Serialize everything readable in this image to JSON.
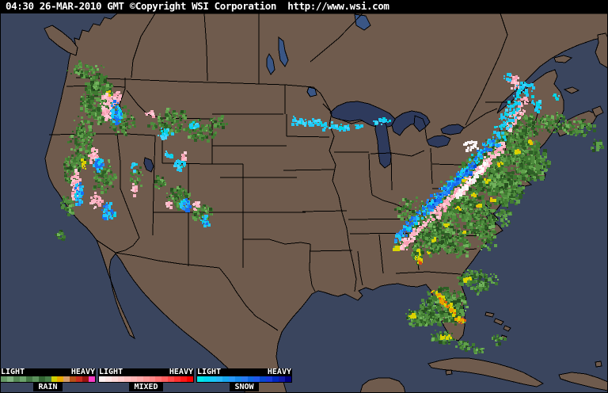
{
  "header": {
    "title": "04:30 26-MAR-2010 GMT ©Copyright WSI Corporation  http://www.wsi.com"
  },
  "legend": {
    "sections": [
      {
        "label": "RAIN",
        "min_label": "LIGHT",
        "max_label": "HEAVY",
        "colors": [
          "#669966",
          "#7FB27F",
          "#558855",
          "#6BA36B",
          "#447744",
          "#5C925C",
          "#336633",
          "#487F48",
          "#D0D000",
          "#E8A800",
          "#D49C6C",
          "#B85018",
          "#C82C20",
          "#981410",
          "#FA3CC8"
        ]
      },
      {
        "label": "MIXED",
        "min_label": "LIGHT",
        "max_label": "HEAVY",
        "colors": [
          "#FFF0F0",
          "#FFE4E4",
          "#FFD8D8",
          "#FFCCCC",
          "#FFC0C0",
          "#FFB4B4",
          "#FFA8A8",
          "#FF9898",
          "#FF8888",
          "#FF7474",
          "#FF6060",
          "#FF4848",
          "#FF3030",
          "#FF1818",
          "#F80000"
        ]
      },
      {
        "label": "SNOW",
        "min_label": "LIGHT",
        "max_label": "HEAVY",
        "colors": [
          "#00E8E8",
          "#00D8F0",
          "#18C8F8",
          "#28B8F8",
          "#18A8F0",
          "#2898F8",
          "#1888E8",
          "#2878F0",
          "#1068E0",
          "#2058E8",
          "#0848D0",
          "#1838D8",
          "#0028C0",
          "#1018A8",
          "#000080"
        ]
      }
    ]
  },
  "map": {
    "colors": {
      "ocean": "#3A455E",
      "land": "#6F5B4D",
      "great_lakes": "#2E3A5C",
      "canada_lakes": "#3A5685",
      "border": "#000000",
      "topbar_bg": "#000000",
      "topbar_text": "#FFFFFF"
    },
    "radar_palette": {
      "G": [
        [
          "#3F7A31",
          3
        ],
        [
          "#4F8C3E",
          3
        ],
        [
          "#2E5F26",
          2
        ],
        [
          "#5FA04B",
          2
        ],
        [
          "#71B25C",
          1
        ],
        [
          "#264E1F",
          1
        ]
      ],
      "Y": [
        [
          "#D8D400",
          3
        ],
        [
          "#E8C000",
          1
        ]
      ],
      "O": [
        [
          "#E88800",
          2
        ],
        [
          "#D84818",
          1
        ]
      ],
      "YO": [
        [
          "#D8D400",
          3
        ],
        [
          "#E8A000",
          2
        ],
        [
          "#E06010",
          1
        ]
      ],
      "P": [
        [
          "#FFB6C6",
          3
        ],
        [
          "#F8A0B4",
          2
        ],
        [
          "#FFCCD8",
          2
        ]
      ],
      "W": [
        [
          "#F6F0F2",
          3
        ],
        [
          "#FFFFFF",
          1
        ]
      ],
      "C": [
        [
          "#20C8F8",
          3
        ],
        [
          "#00D4E4",
          2
        ],
        [
          "#48D4FF",
          1
        ]
      ],
      "B": [
        [
          "#1870F0",
          2
        ],
        [
          "#0848D8",
          1
        ],
        [
          "#2894F8",
          1
        ]
      ],
      "CB": [
        [
          "#20C8F8",
          3
        ],
        [
          "#1870F0",
          2
        ],
        [
          "#00D4E4",
          1
        ],
        [
          "#2894F8",
          1
        ]
      ]
    },
    "regions": [
      "Pacific Northwest rain/mixed/snow",
      "Northern Rockies snow showers",
      "Sierra Nevada mixed and snow",
      "Great Basin and Colorado Rockies showers",
      "Minnesota snow band",
      "Northeast winter storm rain/mixed/snow corridor",
      "Ohio Valley and Mid-Atlantic rain",
      "Southeast scattered showers",
      "Florida thunderstorm band",
      "Gulf and Atlantic offshore showers"
    ]
  }
}
